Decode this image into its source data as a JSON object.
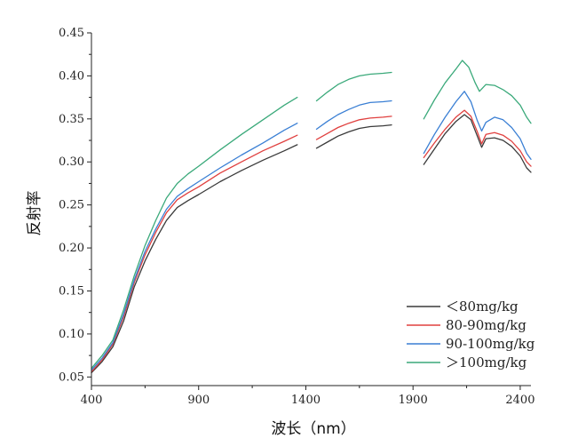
{
  "chart_data": {
    "type": "line",
    "title": "",
    "xlabel": "波长（nm）",
    "ylabel": "反射率",
    "xlim": [
      400,
      2450
    ],
    "ylim": [
      0.04,
      0.45
    ],
    "x_ticks": [
      400,
      900,
      1400,
      1900,
      2400
    ],
    "x_tick_labels": [
      "400",
      "900",
      "1400",
      "1900",
      "2400"
    ],
    "y_ticks": [
      0.05,
      0.1,
      0.15,
      0.2,
      0.25,
      0.3,
      0.35,
      0.4,
      0.45
    ],
    "y_tick_labels": [
      "0.05",
      "0.10",
      "0.15",
      "0.20",
      "0.25",
      "0.30",
      "0.35",
      "0.40",
      "0.45"
    ],
    "grid": false,
    "legend_position": "bottom-right",
    "series": [
      {
        "name": "＜80mg/kg",
        "color": "#3a3a3a",
        "segments": [
          [
            [
              400,
              0.055
            ],
            [
              450,
              0.068
            ],
            [
              500,
              0.085
            ],
            [
              550,
              0.115
            ],
            [
              600,
              0.155
            ],
            [
              650,
              0.185
            ],
            [
              700,
              0.21
            ],
            [
              750,
              0.232
            ],
            [
              800,
              0.247
            ],
            [
              850,
              0.255
            ],
            [
              900,
              0.262
            ],
            [
              1000,
              0.277
            ],
            [
              1100,
              0.29
            ],
            [
              1200,
              0.302
            ],
            [
              1300,
              0.313
            ],
            [
              1360,
              0.32
            ]
          ],
          [
            [
              1450,
              0.316
            ],
            [
              1500,
              0.323
            ],
            [
              1550,
              0.33
            ],
            [
              1600,
              0.335
            ],
            [
              1650,
              0.339
            ],
            [
              1700,
              0.341
            ],
            [
              1760,
              0.342
            ],
            [
              1800,
              0.343
            ]
          ],
          [
            [
              1950,
              0.297
            ],
            [
              2000,
              0.315
            ],
            [
              2050,
              0.333
            ],
            [
              2100,
              0.347
            ],
            [
              2140,
              0.355
            ],
            [
              2170,
              0.349
            ],
            [
              2200,
              0.33
            ],
            [
              2220,
              0.317
            ],
            [
              2240,
              0.327
            ],
            [
              2280,
              0.328
            ],
            [
              2320,
              0.325
            ],
            [
              2360,
              0.318
            ],
            [
              2400,
              0.307
            ],
            [
              2430,
              0.293
            ],
            [
              2450,
              0.288
            ]
          ]
        ]
      },
      {
        "name": "80-90mg/kg",
        "color": "#e0403f",
        "segments": [
          [
            [
              400,
              0.056
            ],
            [
              450,
              0.07
            ],
            [
              500,
              0.088
            ],
            [
              550,
              0.12
            ],
            [
              600,
              0.16
            ],
            [
              650,
              0.192
            ],
            [
              700,
              0.218
            ],
            [
              750,
              0.241
            ],
            [
              800,
              0.256
            ],
            [
              850,
              0.264
            ],
            [
              900,
              0.271
            ],
            [
              1000,
              0.287
            ],
            [
              1100,
              0.3
            ],
            [
              1200,
              0.313
            ],
            [
              1300,
              0.324
            ],
            [
              1360,
              0.331
            ]
          ],
          [
            [
              1450,
              0.326
            ],
            [
              1500,
              0.333
            ],
            [
              1550,
              0.34
            ],
            [
              1600,
              0.345
            ],
            [
              1650,
              0.349
            ],
            [
              1700,
              0.351
            ],
            [
              1760,
              0.352
            ],
            [
              1800,
              0.353
            ]
          ],
          [
            [
              1950,
              0.305
            ],
            [
              2000,
              0.322
            ],
            [
              2050,
              0.338
            ],
            [
              2100,
              0.352
            ],
            [
              2140,
              0.36
            ],
            [
              2170,
              0.353
            ],
            [
              2200,
              0.335
            ],
            [
              2220,
              0.321
            ],
            [
              2240,
              0.332
            ],
            [
              2280,
              0.334
            ],
            [
              2320,
              0.331
            ],
            [
              2360,
              0.324
            ],
            [
              2400,
              0.313
            ],
            [
              2430,
              0.3
            ],
            [
              2450,
              0.295
            ]
          ]
        ]
      },
      {
        "name": "90-100mg/kg",
        "color": "#3a7fd4",
        "segments": [
          [
            [
              400,
              0.058
            ],
            [
              450,
              0.072
            ],
            [
              500,
              0.09
            ],
            [
              550,
              0.123
            ],
            [
              600,
              0.163
            ],
            [
              650,
              0.196
            ],
            [
              700,
              0.222
            ],
            [
              750,
              0.245
            ],
            [
              800,
              0.26
            ],
            [
              850,
              0.269
            ],
            [
              900,
              0.277
            ],
            [
              1000,
              0.293
            ],
            [
              1100,
              0.308
            ],
            [
              1200,
              0.322
            ],
            [
              1300,
              0.337
            ],
            [
              1360,
              0.345
            ]
          ],
          [
            [
              1450,
              0.338
            ],
            [
              1500,
              0.347
            ],
            [
              1550,
              0.355
            ],
            [
              1600,
              0.361
            ],
            [
              1650,
              0.366
            ],
            [
              1700,
              0.369
            ],
            [
              1760,
              0.37
            ],
            [
              1800,
              0.371
            ]
          ],
          [
            [
              1950,
              0.31
            ],
            [
              2000,
              0.332
            ],
            [
              2050,
              0.352
            ],
            [
              2100,
              0.37
            ],
            [
              2140,
              0.382
            ],
            [
              2170,
              0.37
            ],
            [
              2200,
              0.348
            ],
            [
              2220,
              0.336
            ],
            [
              2240,
              0.346
            ],
            [
              2280,
              0.352
            ],
            [
              2320,
              0.349
            ],
            [
              2360,
              0.34
            ],
            [
              2400,
              0.327
            ],
            [
              2430,
              0.31
            ],
            [
              2450,
              0.303
            ]
          ]
        ]
      },
      {
        "name": "＞100mg/kg",
        "color": "#3aa97a",
        "segments": [
          [
            [
              400,
              0.06
            ],
            [
              450,
              0.075
            ],
            [
              500,
              0.093
            ],
            [
              550,
              0.128
            ],
            [
              600,
              0.168
            ],
            [
              650,
              0.203
            ],
            [
              700,
              0.232
            ],
            [
              750,
              0.258
            ],
            [
              800,
              0.275
            ],
            [
              850,
              0.286
            ],
            [
              900,
              0.295
            ],
            [
              1000,
              0.314
            ],
            [
              1100,
              0.332
            ],
            [
              1200,
              0.349
            ],
            [
              1300,
              0.366
            ],
            [
              1360,
              0.375
            ]
          ],
          [
            [
              1450,
              0.371
            ],
            [
              1500,
              0.381
            ],
            [
              1550,
              0.39
            ],
            [
              1600,
              0.396
            ],
            [
              1650,
              0.4
            ],
            [
              1700,
              0.402
            ],
            [
              1760,
              0.403
            ],
            [
              1800,
              0.404
            ]
          ],
          [
            [
              1950,
              0.35
            ],
            [
              2000,
              0.372
            ],
            [
              2050,
              0.392
            ],
            [
              2100,
              0.408
            ],
            [
              2130,
              0.418
            ],
            [
              2160,
              0.41
            ],
            [
              2190,
              0.392
            ],
            [
              2210,
              0.382
            ],
            [
              2240,
              0.39
            ],
            [
              2280,
              0.389
            ],
            [
              2320,
              0.384
            ],
            [
              2360,
              0.377
            ],
            [
              2400,
              0.366
            ],
            [
              2430,
              0.352
            ],
            [
              2450,
              0.345
            ]
          ]
        ]
      }
    ]
  }
}
